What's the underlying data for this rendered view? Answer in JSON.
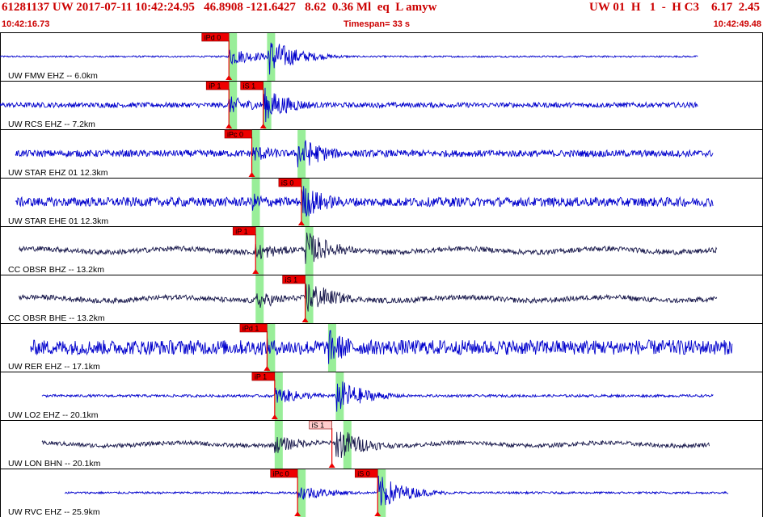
{
  "header": {
    "event_line": "61281137 UW 2017-07-11 10:42:24.95   46.8908 -121.6427   8.62  0.36 Ml  eq  L amyw",
    "event_right": "UW 01  H   1  -  H C3    6.17  2.45",
    "start_time": "10:42:16.73",
    "timespan": "Timespan=  33 s",
    "end_time": "10:42:49.48"
  },
  "colors": {
    "header_text": "#cc0000",
    "trace_blue": "#0000cc",
    "trace_dark": "#1a1a4d",
    "pick_window": "#99ee99",
    "pick_label_bg": "#ee0000",
    "pick_label_bg_light": "#ffcccc",
    "pick_line": "#ee0000",
    "panel_border": "#000000"
  },
  "traces": [
    {
      "label": "UW FMW EHZ -- 6.0km",
      "color": "blue",
      "t0": 0.0,
      "t1": 0.915,
      "noise": 0.04,
      "p": 0.3,
      "s": 0.35,
      "amp": 1.0,
      "picks": [
        {
          "label": "iPd 0",
          "t": 0.3,
          "light": false
        }
      ],
      "win": [
        0.3,
        0.35
      ]
    },
    {
      "label": "UW RCS EHZ -- 7.2km",
      "color": "blue",
      "t0": 0.0,
      "t1": 0.915,
      "noise": 0.12,
      "p": 0.3,
      "s": 0.345,
      "amp": 0.9,
      "picks": [
        {
          "label": "iP 1",
          "t": 0.3,
          "light": false
        },
        {
          "label": "iS 1",
          "t": 0.345,
          "light": false
        }
      ],
      "win": [
        0.3,
        0.345
      ]
    },
    {
      "label": "UW STAR EHZ 01 12.3km",
      "color": "blue",
      "t0": 0.02,
      "t1": 0.935,
      "noise": 0.16,
      "p": 0.33,
      "s": 0.39,
      "amp": 0.9,
      "picks": [
        {
          "label": "iPc 0",
          "t": 0.33,
          "light": false
        }
      ],
      "win": [
        0.33,
        0.39
      ]
    },
    {
      "label": "UW STAR EHE 01 12.3km",
      "color": "blue",
      "t0": 0.02,
      "t1": 0.935,
      "noise": 0.22,
      "p": 0.33,
      "s": 0.395,
      "amp": 0.9,
      "picks": [
        {
          "label": "iS 0",
          "t": 0.395,
          "light": false
        }
      ],
      "win": [
        0.33,
        0.395
      ]
    },
    {
      "label": "CC OBSR BHZ -- 13.2km",
      "color": "dark",
      "t0": 0.025,
      "t1": 0.94,
      "noise": 0.12,
      "p": 0.335,
      "s": 0.4,
      "amp": 0.9,
      "picks": [
        {
          "label": "iP 1",
          "t": 0.335,
          "light": false
        }
      ],
      "win": [
        0.335,
        0.4
      ]
    },
    {
      "label": "CC OBSR BHE -- 13.2km",
      "color": "dark",
      "t0": 0.025,
      "t1": 0.94,
      "noise": 0.12,
      "p": 0.335,
      "s": 0.4,
      "amp": 0.9,
      "picks": [
        {
          "label": "iS 1",
          "t": 0.4,
          "light": false
        }
      ],
      "win": [
        0.335,
        0.4
      ]
    },
    {
      "label": "UW RER EHZ -- 17.1km",
      "color": "blue",
      "t0": 0.04,
      "t1": 0.96,
      "noise": 0.35,
      "p": 0.35,
      "s": 0.43,
      "amp": 0.9,
      "picks": [
        {
          "label": "iPd 1",
          "t": 0.35,
          "light": false
        }
      ],
      "win": [
        0.35,
        0.43
      ]
    },
    {
      "label": "UW LO2 EHZ -- 20.1km",
      "color": "blue",
      "t0": 0.055,
      "t1": 0.935,
      "noise": 0.06,
      "p": 0.36,
      "s": 0.44,
      "amp": 0.9,
      "picks": [
        {
          "label": "iP 1",
          "t": 0.36,
          "light": false
        }
      ],
      "win": [
        0.36,
        0.44
      ]
    },
    {
      "label": "UW LON BHN -- 20.1km",
      "color": "dark",
      "t0": 0.055,
      "t1": 0.93,
      "noise": 0.1,
      "p": 0.36,
      "s": 0.44,
      "amp": 0.9,
      "picks": [
        {
          "label": "iS 1",
          "t": 0.435,
          "light": true
        }
      ],
      "win": [
        0.36,
        0.45
      ]
    },
    {
      "label": "UW RVC EHZ -- 25.9km",
      "color": "blue",
      "t0": 0.085,
      "t1": 0.955,
      "noise": 0.05,
      "p": 0.39,
      "s": 0.495,
      "amp": 0.9,
      "picks": [
        {
          "label": "iPc 0",
          "t": 0.39,
          "light": false
        },
        {
          "label": "iS 0",
          "t": 0.495,
          "light": false
        }
      ],
      "win": [
        0.39,
        0.495
      ]
    }
  ]
}
